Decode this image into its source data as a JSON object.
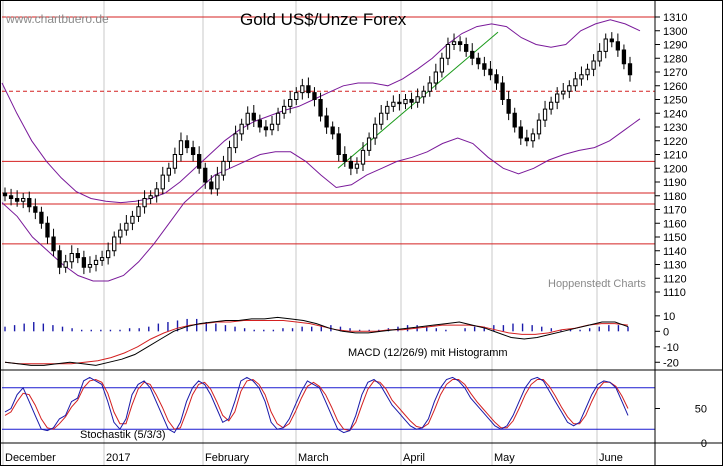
{
  "header": {
    "title": "Gold US$/Unze Forex",
    "source": "www.chartbuero.de",
    "credit": "Hoppenstedt Charts"
  },
  "colors": {
    "resistance_line": "#d42020",
    "bollinger": "#7a1a9a",
    "trend_line": "#1a9a1a",
    "macd_line": "#000000",
    "signal_line": "#d42020",
    "histogram": "#1a1aaa",
    "stochastic_k": "#1a1aaa",
    "stochastic_d": "#d42020",
    "stochastic_levels": "#1a1ad0"
  },
  "chart_data": [
    {
      "type": "candlestick",
      "name": "price",
      "title": "Gold US$/Unze Forex",
      "ylim": [
        1102,
        1318
      ],
      "y_ticks": [
        1110,
        1120,
        1130,
        1140,
        1150,
        1160,
        1170,
        1180,
        1190,
        1200,
        1210,
        1220,
        1230,
        1240,
        1250,
        1260,
        1270,
        1280,
        1290,
        1300,
        1310
      ],
      "x_ticks": [
        "December",
        "2017",
        "February",
        "March",
        "April",
        "May",
        "June"
      ],
      "horizontal_lines": [
        1310,
        1205,
        1182,
        1174,
        1145
      ],
      "dashed_lines": [
        1256
      ],
      "trend_line": [
        [
          1200,
          1299
        ]
      ],
      "closes": [
        1180,
        1178,
        1176,
        1178,
        1172,
        1168,
        1160,
        1150,
        1140,
        1128,
        1132,
        1138,
        1135,
        1128,
        1130,
        1133,
        1135,
        1140,
        1150,
        1155,
        1160,
        1165,
        1172,
        1178,
        1180,
        1185,
        1195,
        1200,
        1210,
        1220,
        1215,
        1210,
        1200,
        1190,
        1185,
        1195,
        1205,
        1215,
        1225,
        1232,
        1240,
        1235,
        1230,
        1228,
        1232,
        1240,
        1245,
        1250,
        1255,
        1260,
        1255,
        1250,
        1238,
        1230,
        1225,
        1210,
        1205,
        1200,
        1203,
        1213,
        1222,
        1232,
        1240,
        1245,
        1248,
        1247,
        1250,
        1248,
        1252,
        1256,
        1262,
        1270,
        1280,
        1290,
        1292,
        1290,
        1285,
        1280,
        1276,
        1272,
        1268,
        1262,
        1250,
        1240,
        1230,
        1222,
        1220,
        1225,
        1235,
        1243,
        1248,
        1254,
        1256,
        1260,
        1265,
        1268,
        1272,
        1278,
        1285,
        1294,
        1292,
        1286,
        1276,
        1268
      ],
      "bollinger_upper": [
        1262,
        1240,
        1220,
        1205,
        1193,
        1183,
        1178,
        1176,
        1175,
        1176,
        1178,
        1182,
        1190,
        1200,
        1210,
        1220,
        1228,
        1234,
        1238,
        1242,
        1245,
        1250,
        1255,
        1260,
        1262,
        1262,
        1260,
        1265,
        1272,
        1280,
        1290,
        1298,
        1303,
        1305,
        1303,
        1295,
        1290,
        1288,
        1290,
        1300,
        1305,
        1308,
        1305,
        1300
      ],
      "bollinger_lower": [
        1175,
        1165,
        1150,
        1140,
        1130,
        1122,
        1118,
        1118,
        1122,
        1132,
        1145,
        1160,
        1175,
        1185,
        1195,
        1200,
        1205,
        1210,
        1212,
        1212,
        1205,
        1195,
        1186,
        1188,
        1195,
        1200,
        1205,
        1208,
        1212,
        1218,
        1222,
        1218,
        1208,
        1200,
        1196,
        1200,
        1206,
        1210,
        1213,
        1215,
        1220,
        1228,
        1236
      ]
    },
    {
      "type": "macd",
      "title": "MACD (12/26/9) mit Histogramm",
      "ylim": [
        -25,
        17
      ],
      "y_ticks": [
        10,
        0,
        -10,
        -20
      ],
      "macd": [
        -20,
        -21,
        -22,
        -22,
        -21,
        -20,
        -21,
        -22,
        -20,
        -18,
        -15,
        -10,
        -5,
        0,
        3,
        5,
        6,
        7,
        7,
        8,
        8,
        9,
        8,
        7,
        5,
        2,
        0,
        -1,
        -1,
        0,
        1,
        2,
        3,
        4,
        5,
        6,
        4,
        2,
        -1,
        -4,
        -5,
        -4,
        -2,
        0,
        2,
        4,
        6,
        6,
        3
      ],
      "signal": [
        -20,
        -21,
        -21,
        -21,
        -21,
        -21,
        -20,
        -19,
        -17,
        -14,
        -10,
        -5,
        -1,
        2,
        4,
        5,
        6,
        6,
        7,
        7,
        7,
        7,
        6,
        5,
        3,
        1,
        0,
        0,
        0,
        1,
        1,
        2,
        3,
        4,
        4,
        4,
        3,
        1,
        -1,
        -2,
        -2,
        -1,
        1,
        2,
        4,
        5,
        5,
        4
      ],
      "histogram": [
        3,
        4,
        5,
        6,
        5,
        4,
        3,
        2,
        1,
        1,
        1,
        1,
        1,
        2,
        2,
        3,
        5,
        6,
        7,
        8,
        8,
        6,
        5,
        4,
        3,
        2,
        1,
        1,
        1,
        2,
        2,
        3,
        3,
        4,
        4,
        3,
        2,
        1,
        1,
        1,
        2,
        3,
        4,
        4,
        3,
        2,
        1,
        0,
        2,
        3,
        3,
        4,
        4,
        5,
        5,
        4,
        3,
        2,
        1,
        1,
        1,
        2,
        3,
        4,
        4,
        3
      ]
    },
    {
      "type": "stochastic",
      "title": "Stochastik (5/3/3)",
      "ylim": [
        0,
        100
      ],
      "y_ticks": [
        50,
        0
      ],
      "levels": [
        80,
        20
      ],
      "k": [
        45,
        50,
        70,
        80,
        60,
        40,
        20,
        18,
        22,
        35,
        40,
        60,
        65,
        90,
        95,
        90,
        85,
        60,
        30,
        20,
        35,
        70,
        85,
        90,
        80,
        60,
        40,
        20,
        15,
        30,
        60,
        80,
        90,
        85,
        70,
        50,
        30,
        35,
        60,
        90,
        95,
        90,
        80,
        60,
        30,
        20,
        22,
        35,
        55,
        75,
        90,
        85,
        80,
        60,
        40,
        20,
        15,
        18,
        40,
        70,
        88,
        92,
        85,
        70,
        55,
        45,
        35,
        25,
        20,
        22,
        35,
        60,
        80,
        92,
        95,
        90,
        80,
        65,
        55,
        45,
        35,
        25,
        20,
        25,
        40,
        60,
        80,
        92,
        95,
        90,
        75,
        60,
        45,
        30,
        25,
        30,
        50,
        70,
        85,
        90,
        88,
        80,
        60,
        40
      ],
      "d": [
        40,
        45,
        60,
        72,
        70,
        55,
        35,
        22,
        20,
        28,
        38,
        52,
        62,
        80,
        90,
        92,
        88,
        72,
        45,
        28,
        28,
        55,
        78,
        88,
        85,
        70,
        52,
        32,
        20,
        22,
        45,
        70,
        85,
        88,
        78,
        60,
        40,
        32,
        45,
        75,
        90,
        92,
        85,
        70,
        45,
        28,
        22,
        28,
        45,
        65,
        82,
        88,
        82,
        70,
        52,
        32,
        20,
        18,
        30,
        55,
        78,
        90,
        88,
        78,
        62,
        52,
        42,
        32,
        24,
        22,
        28,
        48,
        70,
        85,
        92,
        92,
        85,
        72,
        60,
        50,
        40,
        30,
        22,
        22,
        32,
        50,
        70,
        85,
        92,
        92,
        82,
        68,
        52,
        38,
        28,
        28,
        40,
        60,
        78,
        88,
        88,
        82,
        68,
        50
      ]
    }
  ]
}
